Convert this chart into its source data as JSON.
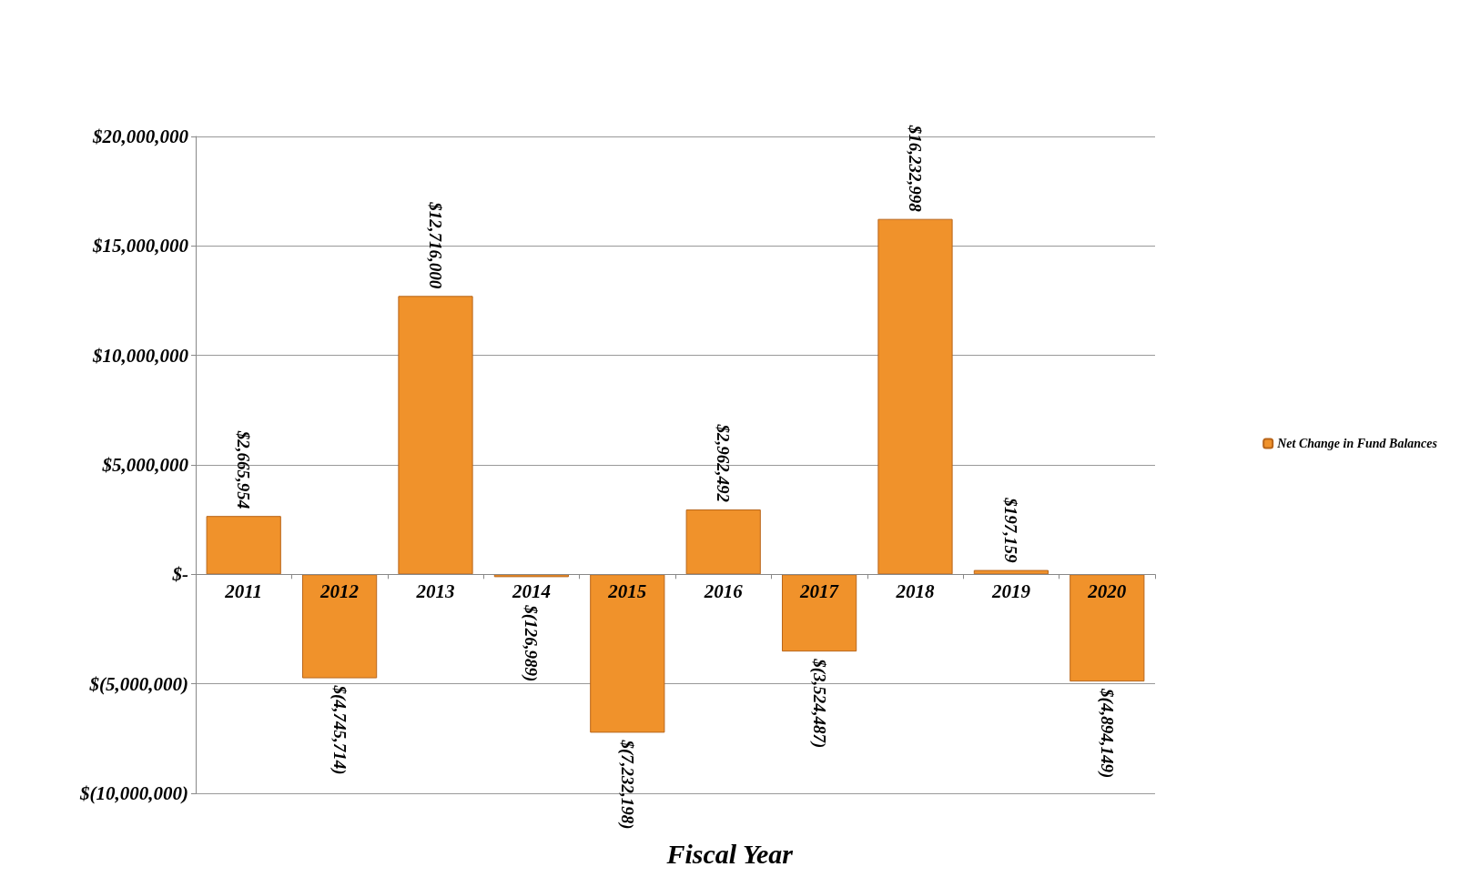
{
  "chart_data": {
    "type": "bar",
    "annotations": [
      "Fiscal Year"
    ],
    "categories": [
      "2011",
      "2012",
      "2013",
      "2014",
      "2015",
      "2016",
      "2017",
      "2018",
      "2019",
      "2020"
    ],
    "series": [
      {
        "name": "Net Change in Fund Balances",
        "color": "#f0922b",
        "values": [
          2665954,
          -4745714,
          12716000,
          -126989,
          -7232198,
          2962492,
          -3524487,
          16232998,
          197159,
          -4894149
        ],
        "value_labels": [
          "$2,665,954",
          "$(4,745,714)",
          "$12,716,000",
          "$(126,989)",
          "$(7,232,198)",
          "$2,962,492",
          "$(3,524,487)",
          "$16,232,998",
          "$197,159",
          "$(4,894,149)"
        ]
      }
    ],
    "ylim": [
      -10000000,
      20000000
    ],
    "yticks": [
      {
        "value": -10000000,
        "label": "$(10,000,000)"
      },
      {
        "value": -5000000,
        "label": "$(5,000,000)"
      },
      {
        "value": 0,
        "label": "$-"
      },
      {
        "value": 5000000,
        "label": "$5,000,000"
      },
      {
        "value": 10000000,
        "label": "$10,000,000"
      },
      {
        "value": 15000000,
        "label": "$15,000,000"
      },
      {
        "value": 20000000,
        "label": "$20,000,000"
      }
    ],
    "grid": "y",
    "legend": "right"
  }
}
